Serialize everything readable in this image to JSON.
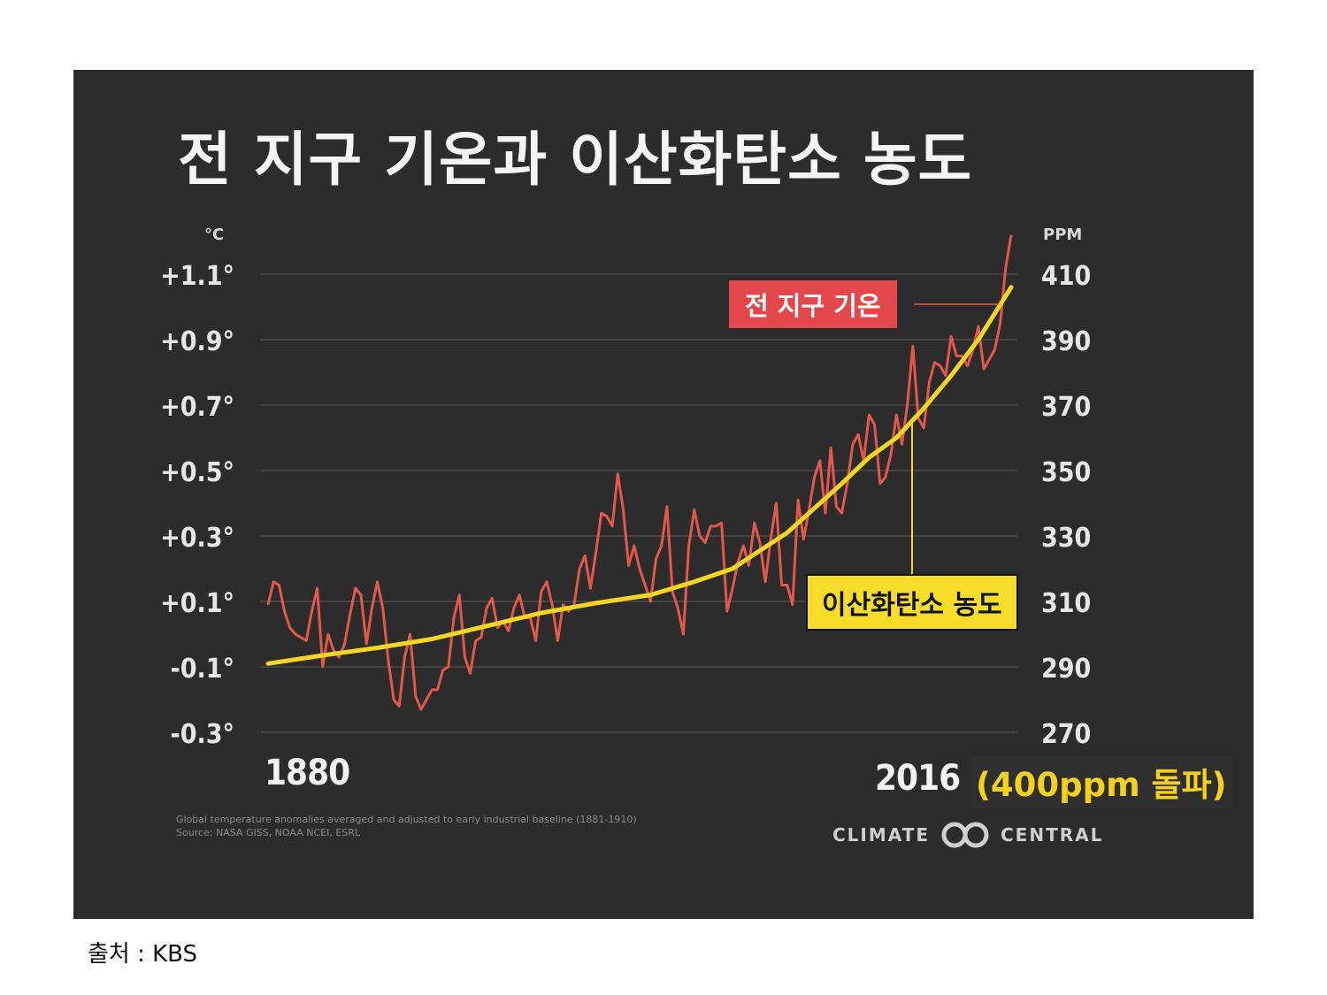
{
  "header": {
    "title": "전 지구 기온과 이산화탄소 농도"
  },
  "axes": {
    "left_unit": "°C",
    "right_unit": "PPM"
  },
  "footer": {
    "year_start": "1880",
    "year_end": "2016",
    "milestone": "(400ppm 돌파)",
    "note_line1": "Global temperature anomalies averaged and adjusted to early industrial baseline (1881-1910)",
    "note_line2": "Source: NASA GISS, NOAA NCEI, ESRL",
    "logo_left": "CLIMATE",
    "logo_right": "CENTRAL"
  },
  "labels": {
    "temperature": "전 지구 기온",
    "co2": "이산화탄소 농도"
  },
  "caption": "출처 : KBS",
  "colors": {
    "panel": "#2c2c2c",
    "temperature": "#e4574b",
    "co2": "#f5d722",
    "grid": "#4a4a4a"
  },
  "chart_data": {
    "type": "line",
    "x_range": [
      1880,
      2016
    ],
    "grid": true,
    "y_left": {
      "label": "°C",
      "ticks": [
        "+1.1°",
        "+0.9°",
        "+0.7°",
        "+0.5°",
        "+0.3°",
        "+0.1°",
        "-0.1°",
        "-0.3°"
      ],
      "tick_values": [
        1.1,
        0.9,
        0.7,
        0.5,
        0.3,
        0.1,
        -0.1,
        -0.3
      ],
      "ylim": [
        -0.3,
        1.1
      ]
    },
    "y_right": {
      "label": "PPM",
      "ticks": [
        "410",
        "390",
        "370",
        "350",
        "330",
        "310",
        "290",
        "270"
      ],
      "tick_values": [
        410,
        390,
        370,
        350,
        330,
        310,
        290,
        270
      ],
      "ylim": [
        270,
        410
      ]
    },
    "series": [
      {
        "name": "전 지구 기온",
        "axis": "left",
        "x": [
          1880,
          1881,
          1882,
          1883,
          1884,
          1885,
          1886,
          1887,
          1888,
          1889,
          1890,
          1891,
          1892,
          1893,
          1894,
          1895,
          1896,
          1897,
          1898,
          1899,
          1900,
          1901,
          1902,
          1903,
          1904,
          1905,
          1906,
          1907,
          1908,
          1909,
          1910,
          1911,
          1912,
          1913,
          1914,
          1915,
          1916,
          1917,
          1918,
          1919,
          1920,
          1921,
          1922,
          1923,
          1924,
          1925,
          1926,
          1927,
          1928,
          1929,
          1930,
          1931,
          1932,
          1933,
          1934,
          1935,
          1936,
          1937,
          1938,
          1939,
          1940,
          1941,
          1942,
          1943,
          1944,
          1945,
          1946,
          1947,
          1948,
          1949,
          1950,
          1951,
          1952,
          1953,
          1954,
          1955,
          1956,
          1957,
          1958,
          1959,
          1960,
          1961,
          1962,
          1963,
          1964,
          1965,
          1966,
          1967,
          1968,
          1969,
          1970,
          1971,
          1972,
          1973,
          1974,
          1975,
          1976,
          1977,
          1978,
          1979,
          1980,
          1981,
          1982,
          1983,
          1984,
          1985,
          1986,
          1987,
          1988,
          1989,
          1990,
          1991,
          1992,
          1993,
          1994,
          1995,
          1996,
          1997,
          1998,
          1999,
          2000,
          2001,
          2002,
          2003,
          2004,
          2005,
          2006,
          2007,
          2008,
          2009,
          2010,
          2011,
          2012,
          2013,
          2014,
          2015,
          2016
        ],
        "values": [
          0.09,
          0.16,
          0.15,
          0.07,
          0.02,
          0.0,
          -0.01,
          -0.02,
          0.07,
          0.14,
          -0.1,
          0.0,
          -0.05,
          -0.07,
          -0.03,
          0.06,
          0.14,
          0.12,
          -0.03,
          0.08,
          0.16,
          0.08,
          -0.08,
          -0.2,
          -0.22,
          -0.07,
          0.0,
          -0.19,
          -0.23,
          -0.2,
          -0.17,
          -0.17,
          -0.11,
          -0.1,
          0.05,
          0.12,
          -0.07,
          -0.12,
          -0.02,
          -0.01,
          0.08,
          0.11,
          0.02,
          0.04,
          0.01,
          0.08,
          0.12,
          0.05,
          0.05,
          -0.02,
          0.13,
          0.16,
          0.09,
          -0.02,
          0.09,
          0.07,
          0.09,
          0.2,
          0.24,
          0.14,
          0.25,
          0.37,
          0.36,
          0.33,
          0.49,
          0.38,
          0.21,
          0.27,
          0.2,
          0.15,
          0.1,
          0.23,
          0.27,
          0.39,
          0.13,
          0.08,
          0.0,
          0.27,
          0.38,
          0.3,
          0.28,
          0.33,
          0.33,
          0.34,
          0.07,
          0.14,
          0.22,
          0.27,
          0.21,
          0.34,
          0.28,
          0.16,
          0.29,
          0.4,
          0.15,
          0.15,
          0.09,
          0.41,
          0.29,
          0.38,
          0.48,
          0.53,
          0.37,
          0.57,
          0.39,
          0.37,
          0.46,
          0.58,
          0.61,
          0.53,
          0.67,
          0.64,
          0.46,
          0.48,
          0.55,
          0.67,
          0.58,
          0.7,
          0.88,
          0.66,
          0.63,
          0.77,
          0.83,
          0.82,
          0.79,
          0.91,
          0.85,
          0.85,
          0.82,
          0.87,
          0.94,
          0.81,
          0.84,
          0.87,
          0.95,
          1.12,
          1.22
        ]
      },
      {
        "name": "이산화탄소 농도",
        "axis": "right",
        "x": [
          1880,
          1890,
          1900,
          1910,
          1920,
          1930,
          1940,
          1950,
          1958,
          1965,
          1970,
          1975,
          1980,
          1985,
          1990,
          1995,
          2000,
          2005,
          2010,
          2016
        ],
        "values": [
          291,
          293.5,
          295.8,
          298.5,
          302.5,
          306.5,
          309.5,
          312,
          316,
          320,
          325.5,
          331,
          338.5,
          346,
          354,
          360,
          369,
          379,
          390,
          406
        ]
      }
    ]
  }
}
